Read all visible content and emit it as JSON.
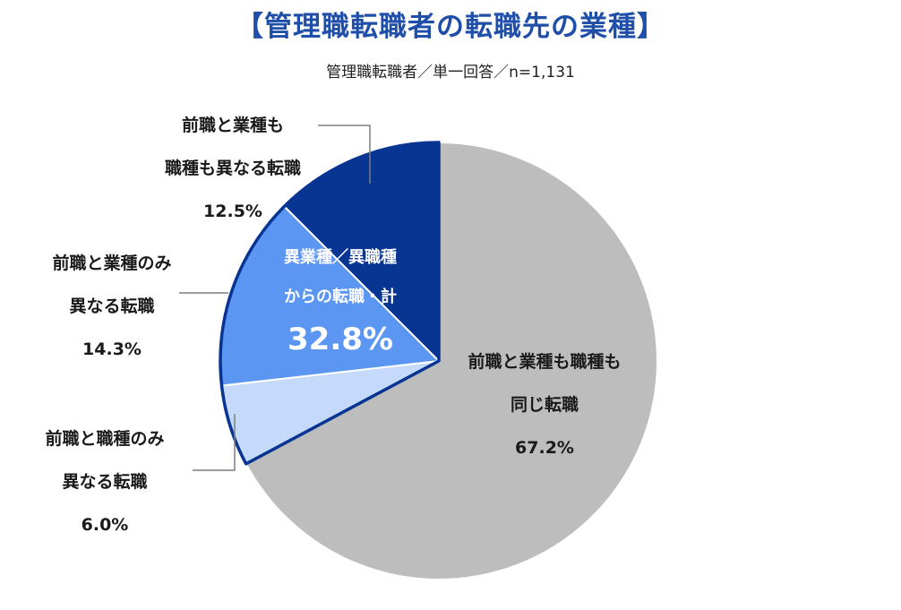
{
  "title": "【管理職転職者の転職先の業種】",
  "subtitle": "管理職転職者／単一回答／n=1,131",
  "chart_data": {
    "type": "pie",
    "slices": [
      {
        "label_lines": [
          "前職と業種も職種も",
          "同じ転職"
        ],
        "value": 67.2,
        "value_text": "67.2%",
        "color": "#bdbdbd"
      },
      {
        "label_lines": [
          "前職と職種のみ",
          "異なる転職"
        ],
        "value": 6.0,
        "value_text": "6.0%",
        "color": "#c5dafa"
      },
      {
        "label_lines": [
          "前職と業種のみ",
          "異なる転職"
        ],
        "value": 14.3,
        "value_text": "14.3%",
        "color": "#5b96f2"
      },
      {
        "label_lines": [
          "前職と業種も",
          "職種も異なる転職"
        ],
        "value": 12.5,
        "value_text": "12.5%",
        "color": "#083592"
      }
    ],
    "group_annotation": {
      "lines": [
        "異業種／異職種",
        "からの転職・計"
      ],
      "value_text": "32.8%"
    },
    "accent_color": "#1f4fa8"
  }
}
